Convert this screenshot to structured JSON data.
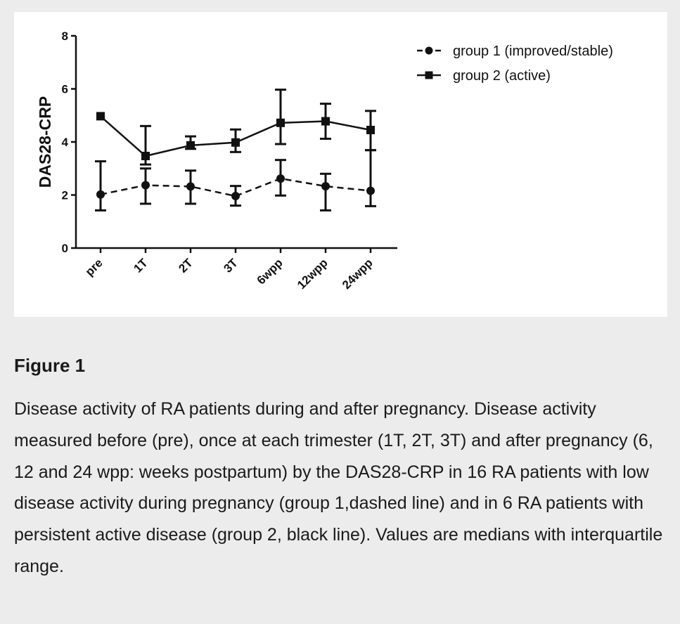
{
  "figure": {
    "label": "Figure 1",
    "caption": "Disease activity of RA patients during and after pregnancy. Disease activity measured before (pre), once at each trimester (1T, 2T, 3T) and after pregnancy (6, 12 and 24 wpp: weeks postpartum) by the DAS28-CRP in 16 RA patients with low disease activity during pregnancy (group 1,dashed line) and in 6 RA patients with persistent active disease (group 2, black line). Values are medians with interquartile range."
  },
  "chart_data": {
    "type": "line",
    "categories": [
      "pre",
      "1T",
      "2T",
      "3T",
      "6wpp",
      "12wpp",
      "24wpp"
    ],
    "ylabel": "DAS28-CRP",
    "xlabel": "",
    "ylim": [
      0,
      8
    ],
    "yticks": [
      0,
      2,
      4,
      6,
      8
    ],
    "grid": false,
    "legend_position": "top-right",
    "series": [
      {
        "name": "group 1 (improved/stable)",
        "marker": "circle",
        "line_style": "dashed",
        "color": "#111111",
        "values": [
          2.02,
          2.37,
          2.32,
          1.96,
          2.62,
          2.33,
          2.16
        ],
        "lower": [
          1.42,
          1.67,
          1.67,
          1.6,
          1.98,
          1.42,
          1.58
        ],
        "upper": [
          3.27,
          3.0,
          2.92,
          2.34,
          3.32,
          2.8,
          3.69
        ]
      },
      {
        "name": "group 2 (active)",
        "marker": "square",
        "line_style": "solid",
        "color": "#111111",
        "values": [
          4.97,
          3.47,
          3.87,
          3.98,
          4.72,
          4.78,
          4.45
        ],
        "lower": [
          4.97,
          3.15,
          3.74,
          3.62,
          3.92,
          4.12,
          3.69
        ],
        "upper": [
          4.97,
          4.6,
          4.21,
          4.47,
          5.97,
          5.44,
          5.17
        ]
      }
    ]
  }
}
